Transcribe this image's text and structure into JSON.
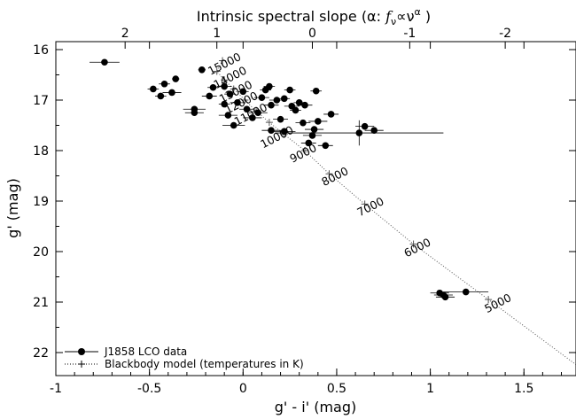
{
  "chart_data": {
    "type": "scatter",
    "title": "",
    "xlabel": "g' - i' (mag)",
    "ylabel": "g' (mag)",
    "top_axis_label": "Intrinsic spectral slope (α: f_ν ∝ ν^α )",
    "top_axis_label_parts": {
      "prefix": "Intrinsic spectral slope (α: ",
      "f": "f",
      "f_sub": "ν",
      "prop": "∝",
      "nu": "ν",
      "nu_sup": "α",
      "suffix": " )"
    },
    "xlim": [
      -1,
      1.8
    ],
    "ylim": [
      22.4,
      15.9
    ],
    "y_inverted": true,
    "x_ticks": [
      "-1",
      "-0.5",
      "0",
      "0.5",
      "1",
      "1.5"
    ],
    "x_tick_values": [
      -1,
      -0.5,
      0,
      0.5,
      1,
      1.5
    ],
    "y_ticks": [
      "16",
      "17",
      "18",
      "19",
      "20",
      "21",
      "22"
    ],
    "y_tick_values": [
      16,
      17,
      18,
      19,
      20,
      21,
      22
    ],
    "top_ticks": [
      "2",
      "1",
      "0",
      "-1",
      "-2"
    ],
    "top_tick_gi": [
      -0.63,
      -0.14,
      0.37,
      0.89,
      1.4
    ],
    "grid": false,
    "legend_position": "bottom-left",
    "series": [
      {
        "name": "J1858 LCO data",
        "marker": "filled-circle",
        "color": "#000000",
        "points": [
          {
            "x": -0.74,
            "y": 16.25,
            "xerr": 0.08,
            "yerr": 0
          },
          {
            "x": -0.22,
            "y": 16.4,
            "xerr": 0.02,
            "yerr": 0.02
          },
          {
            "x": -0.48,
            "y": 16.78,
            "xerr": 0.03,
            "yerr": 0.02
          },
          {
            "x": -0.44,
            "y": 16.92,
            "xerr": 0.03,
            "yerr": 0.02
          },
          {
            "x": -0.42,
            "y": 16.68,
            "xerr": 0.03,
            "yerr": 0.02
          },
          {
            "x": -0.38,
            "y": 16.85,
            "xerr": 0.05,
            "yerr": 0.02
          },
          {
            "x": -0.36,
            "y": 16.58,
            "xerr": 0.02,
            "yerr": 0.02
          },
          {
            "x": -0.26,
            "y": 17.18,
            "xerr": 0.06,
            "yerr": 0.03
          },
          {
            "x": -0.26,
            "y": 17.25,
            "xerr": 0.05,
            "yerr": 0.03
          },
          {
            "x": -0.18,
            "y": 16.92,
            "xerr": 0.04,
            "yerr": 0.02
          },
          {
            "x": -0.16,
            "y": 16.75,
            "xerr": 0.03,
            "yerr": 0.02
          },
          {
            "x": -0.1,
            "y": 16.73,
            "xerr": 0.04,
            "yerr": 0.02
          },
          {
            "x": -0.07,
            "y": 16.88,
            "xerr": 0.03,
            "yerr": 0.02
          },
          {
            "x": -0.1,
            "y": 17.08,
            "xerr": 0.03,
            "yerr": 0.02
          },
          {
            "x": -0.08,
            "y": 17.3,
            "xerr": 0.05,
            "yerr": 0.03
          },
          {
            "x": -0.03,
            "y": 17.05,
            "xerr": 0.04,
            "yerr": 0.02
          },
          {
            "x": -0.05,
            "y": 17.5,
            "xerr": 0.06,
            "yerr": 0.03
          },
          {
            "x": 0.0,
            "y": 16.83,
            "xerr": 0.03,
            "yerr": 0.02
          },
          {
            "x": 0.02,
            "y": 17.18,
            "xerr": 0.04,
            "yerr": 0.02
          },
          {
            "x": 0.05,
            "y": 17.35,
            "xerr": 0.05,
            "yerr": 0.03
          },
          {
            "x": 0.08,
            "y": 17.25,
            "xerr": 0.05,
            "yerr": 0.03
          },
          {
            "x": 0.1,
            "y": 16.95,
            "xerr": 0.04,
            "yerr": 0.02
          },
          {
            "x": 0.12,
            "y": 16.8,
            "xerr": 0.03,
            "yerr": 0.02
          },
          {
            "x": 0.14,
            "y": 16.73,
            "xerr": 0.03,
            "yerr": 0.02
          },
          {
            "x": 0.15,
            "y": 17.1,
            "xerr": 0.04,
            "yerr": 0.02
          },
          {
            "x": 0.15,
            "y": 17.6,
            "xerr": 0.05,
            "yerr": 0.03
          },
          {
            "x": 0.18,
            "y": 17.0,
            "xerr": 0.04,
            "yerr": 0.02
          },
          {
            "x": 0.2,
            "y": 17.38,
            "xerr": 0.04,
            "yerr": 0.02
          },
          {
            "x": 0.22,
            "y": 17.62,
            "xerr": 0.06,
            "yerr": 0.03
          },
          {
            "x": 0.22,
            "y": 16.97,
            "xerr": 0.03,
            "yerr": 0.02
          },
          {
            "x": 0.25,
            "y": 16.8,
            "xerr": 0.03,
            "yerr": 0.02
          },
          {
            "x": 0.26,
            "y": 17.12,
            "xerr": 0.04,
            "yerr": 0.02
          },
          {
            "x": 0.28,
            "y": 17.2,
            "xerr": 0.03,
            "yerr": 0.02
          },
          {
            "x": 0.3,
            "y": 17.05,
            "xerr": 0.03,
            "yerr": 0.02
          },
          {
            "x": 0.32,
            "y": 17.45,
            "xerr": 0.04,
            "yerr": 0.02
          },
          {
            "x": 0.33,
            "y": 17.1,
            "xerr": 0.04,
            "yerr": 0.02
          },
          {
            "x": 0.35,
            "y": 17.85,
            "xerr": 0.04,
            "yerr": 0.03
          },
          {
            "x": 0.37,
            "y": 17.7,
            "xerr": 0.05,
            "yerr": 0.03
          },
          {
            "x": 0.38,
            "y": 17.58,
            "xerr": 0.05,
            "yerr": 0.03
          },
          {
            "x": 0.39,
            "y": 16.82,
            "xerr": 0.03,
            "yerr": 0.02
          },
          {
            "x": 0.4,
            "y": 17.42,
            "xerr": 0.05,
            "yerr": 0.03
          },
          {
            "x": 0.44,
            "y": 17.9,
            "xerr": 0.04,
            "yerr": 0.03
          },
          {
            "x": 0.47,
            "y": 17.28,
            "xerr": 0.04,
            "yerr": 0.02
          },
          {
            "x": 0.62,
            "y": 17.65,
            "xerr": 0.45,
            "yerr": 0.25
          },
          {
            "x": 0.65,
            "y": 17.52,
            "xerr": 0.05,
            "yerr": 0.03
          },
          {
            "x": 0.7,
            "y": 17.6,
            "xerr": 0.05,
            "yerr": 0.03
          },
          {
            "x": 1.05,
            "y": 20.82,
            "xerr": 0.05,
            "yerr": 0.03
          },
          {
            "x": 1.07,
            "y": 20.86,
            "xerr": 0.05,
            "yerr": 0.03
          },
          {
            "x": 1.08,
            "y": 20.9,
            "xerr": 0.05,
            "yerr": 0.03
          },
          {
            "x": 1.19,
            "y": 20.8,
            "xerr": 0.12,
            "yerr": 0.05
          }
        ]
      },
      {
        "name": "Blackbody model (temperatures in K)",
        "marker": "plus",
        "line": "dotted",
        "color": "#000000",
        "points": [
          {
            "x": -0.11,
            "y": 16.22
          },
          {
            "x": -0.14,
            "y": 16.43
          },
          {
            "x": -0.1,
            "y": 16.6
          },
          {
            "x": -0.05,
            "y": 16.78
          },
          {
            "x": 0.01,
            "y": 17.0
          },
          {
            "x": 0.07,
            "y": 17.22
          },
          {
            "x": 0.14,
            "y": 17.44
          },
          {
            "x": 0.22,
            "y": 17.68
          },
          {
            "x": 0.33,
            "y": 18.0
          },
          {
            "x": 0.46,
            "y": 18.46
          },
          {
            "x": 0.65,
            "y": 19.06
          },
          {
            "x": 0.91,
            "y": 19.85
          },
          {
            "x": 1.31,
            "y": 20.95
          },
          {
            "x": 1.8,
            "y": 22.3
          }
        ]
      }
    ],
    "temperature_labels": [
      {
        "text": "15000",
        "x": -0.09,
        "y": 16.35
      },
      {
        "text": "14000",
        "x": -0.06,
        "y": 16.62
      },
      {
        "text": "13000",
        "x": -0.03,
        "y": 16.9
      },
      {
        "text": "12000",
        "x": 0.0,
        "y": 17.12
      },
      {
        "text": "11000",
        "x": 0.05,
        "y": 17.35
      },
      {
        "text": "10000",
        "x": 0.19,
        "y": 17.8
      },
      {
        "text": "9000",
        "x": 0.33,
        "y": 18.12
      },
      {
        "text": "8000",
        "x": 0.5,
        "y": 18.58
      },
      {
        "text": "7000",
        "x": 0.69,
        "y": 19.18
      },
      {
        "text": "6000",
        "x": 0.94,
        "y": 19.99
      },
      {
        "text": "5000",
        "x": 1.37,
        "y": 21.09
      }
    ]
  }
}
